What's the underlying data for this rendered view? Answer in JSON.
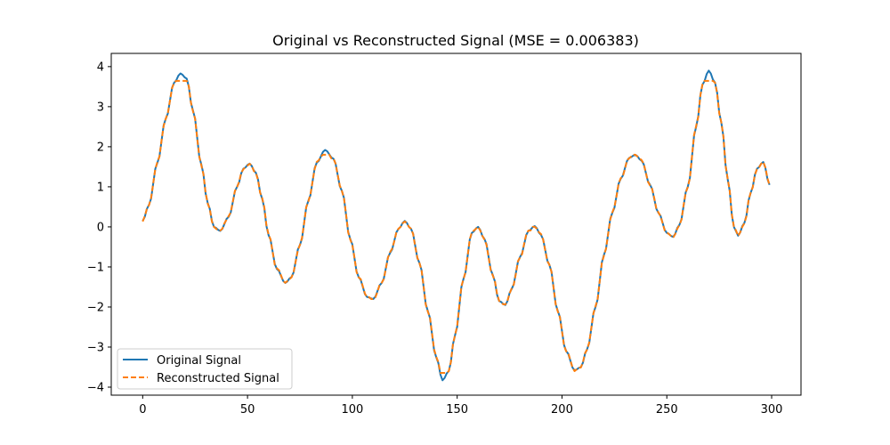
{
  "chart_data": {
    "type": "line",
    "title": "Original vs Reconstructed Signal (MSE = 0.006383)",
    "xlabel": "",
    "ylabel": "",
    "xlim": [
      -15,
      314
    ],
    "ylim": [
      -4.2,
      4.33
    ],
    "xticks": [
      0,
      50,
      100,
      150,
      200,
      250,
      300
    ],
    "yticks": [
      -4,
      -3,
      -2,
      -1,
      0,
      1,
      2,
      3,
      4
    ],
    "grid": false,
    "legend_position": "lower-left",
    "keypoints": [
      [
        0,
        0.15
      ],
      [
        3,
        0.55
      ],
      [
        7,
        1.6
      ],
      [
        11,
        2.7
      ],
      [
        15,
        3.6
      ],
      [
        18,
        3.83
      ],
      [
        21,
        3.7
      ],
      [
        24,
        2.9
      ],
      [
        28,
        1.55
      ],
      [
        31,
        0.6
      ],
      [
        34,
        0.0
      ],
      [
        37,
        -0.1
      ],
      [
        41,
        0.25
      ],
      [
        45,
        1.0
      ],
      [
        48,
        1.45
      ],
      [
        51,
        1.58
      ],
      [
        54,
        1.35
      ],
      [
        57,
        0.7
      ],
      [
        60,
        -0.2
      ],
      [
        64,
        -1.05
      ],
      [
        68,
        -1.4
      ],
      [
        71,
        -1.25
      ],
      [
        75,
        -0.45
      ],
      [
        79,
        0.65
      ],
      [
        83,
        1.6
      ],
      [
        87,
        1.92
      ],
      [
        91,
        1.7
      ],
      [
        95,
        0.9
      ],
      [
        99,
        -0.3
      ],
      [
        103,
        -1.25
      ],
      [
        107,
        -1.75
      ],
      [
        110,
        -1.8
      ],
      [
        114,
        -1.4
      ],
      [
        118,
        -0.65
      ],
      [
        122,
        -0.05
      ],
      [
        125,
        0.15
      ],
      [
        128,
        -0.05
      ],
      [
        132,
        -0.9
      ],
      [
        136,
        -2.1
      ],
      [
        140,
        -3.25
      ],
      [
        143,
        -3.83
      ],
      [
        146,
        -3.6
      ],
      [
        149,
        -2.7
      ],
      [
        153,
        -1.3
      ],
      [
        157,
        -0.15
      ],
      [
        160,
        0.0
      ],
      [
        163,
        -0.3
      ],
      [
        167,
        -1.2
      ],
      [
        170,
        -1.85
      ],
      [
        173,
        -1.95
      ],
      [
        176,
        -1.55
      ],
      [
        180,
        -0.75
      ],
      [
        184,
        -0.1
      ],
      [
        187,
        0.02
      ],
      [
        190,
        -0.2
      ],
      [
        194,
        -0.95
      ],
      [
        198,
        -2.1
      ],
      [
        202,
        -3.1
      ],
      [
        206,
        -3.58
      ],
      [
        209,
        -3.5
      ],
      [
        212,
        -3.05
      ],
      [
        216,
        -2.0
      ],
      [
        220,
        -0.7
      ],
      [
        224,
        0.35
      ],
      [
        228,
        1.2
      ],
      [
        232,
        1.72
      ],
      [
        235,
        1.8
      ],
      [
        238,
        1.65
      ],
      [
        242,
        1.05
      ],
      [
        246,
        0.35
      ],
      [
        250,
        -0.15
      ],
      [
        253,
        -0.25
      ],
      [
        256,
        0.05
      ],
      [
        260,
        1.0
      ],
      [
        264,
        2.5
      ],
      [
        267,
        3.55
      ],
      [
        270,
        3.9
      ],
      [
        273,
        3.6
      ],
      [
        276,
        2.6
      ],
      [
        279,
        1.2
      ],
      [
        282,
        0.0
      ],
      [
        284,
        -0.22
      ],
      [
        287,
        0.1
      ],
      [
        290,
        0.85
      ],
      [
        293,
        1.45
      ],
      [
        296,
        1.62
      ],
      [
        299,
        1.05
      ]
    ],
    "series": [
      {
        "name": "Original Signal",
        "color": "#1f77b4",
        "style": "solid",
        "x_start": 0,
        "x_end": 299,
        "step": 1
      },
      {
        "name": "Reconstructed Signal",
        "color": "#ff7f0e",
        "style": "dashed",
        "x_start": 0,
        "x_end": 299,
        "step": 1,
        "note_quantization": 0.18
      }
    ]
  }
}
